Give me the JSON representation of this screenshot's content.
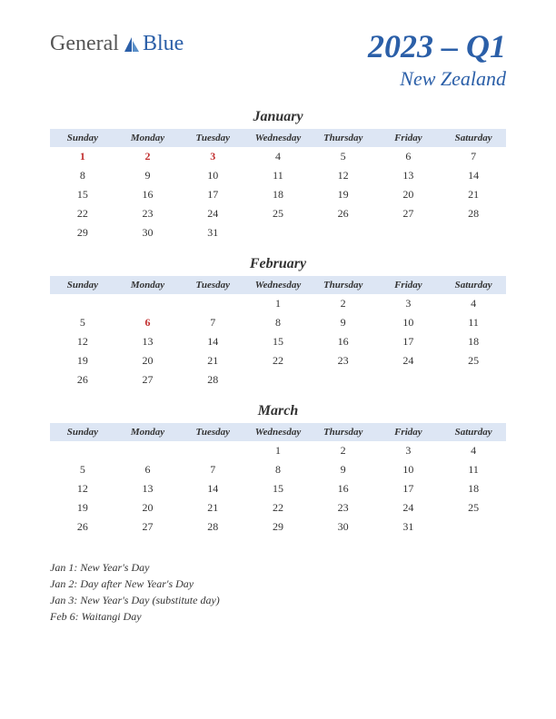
{
  "logo": {
    "part1": "General",
    "part2": "Blue"
  },
  "title": {
    "quarter": "2023 – Q1",
    "country": "New Zealand"
  },
  "day_headers": [
    "Sunday",
    "Monday",
    "Tuesday",
    "Wednesday",
    "Thursday",
    "Friday",
    "Saturday"
  ],
  "months": [
    {
      "name": "January",
      "weeks": [
        [
          {
            "d": "1",
            "h": true
          },
          {
            "d": "2",
            "h": true
          },
          {
            "d": "3",
            "h": true
          },
          {
            "d": "4"
          },
          {
            "d": "5"
          },
          {
            "d": "6"
          },
          {
            "d": "7"
          }
        ],
        [
          {
            "d": "8"
          },
          {
            "d": "9"
          },
          {
            "d": "10"
          },
          {
            "d": "11"
          },
          {
            "d": "12"
          },
          {
            "d": "13"
          },
          {
            "d": "14"
          }
        ],
        [
          {
            "d": "15"
          },
          {
            "d": "16"
          },
          {
            "d": "17"
          },
          {
            "d": "18"
          },
          {
            "d": "19"
          },
          {
            "d": "20"
          },
          {
            "d": "21"
          }
        ],
        [
          {
            "d": "22"
          },
          {
            "d": "23"
          },
          {
            "d": "24"
          },
          {
            "d": "25"
          },
          {
            "d": "26"
          },
          {
            "d": "27"
          },
          {
            "d": "28"
          }
        ],
        [
          {
            "d": "29"
          },
          {
            "d": "30"
          },
          {
            "d": "31"
          },
          {
            "d": ""
          },
          {
            "d": ""
          },
          {
            "d": ""
          },
          {
            "d": ""
          }
        ]
      ]
    },
    {
      "name": "February",
      "weeks": [
        [
          {
            "d": ""
          },
          {
            "d": ""
          },
          {
            "d": ""
          },
          {
            "d": "1"
          },
          {
            "d": "2"
          },
          {
            "d": "3"
          },
          {
            "d": "4"
          }
        ],
        [
          {
            "d": "5"
          },
          {
            "d": "6",
            "h": true
          },
          {
            "d": "7"
          },
          {
            "d": "8"
          },
          {
            "d": "9"
          },
          {
            "d": "10"
          },
          {
            "d": "11"
          }
        ],
        [
          {
            "d": "12"
          },
          {
            "d": "13"
          },
          {
            "d": "14"
          },
          {
            "d": "15"
          },
          {
            "d": "16"
          },
          {
            "d": "17"
          },
          {
            "d": "18"
          }
        ],
        [
          {
            "d": "19"
          },
          {
            "d": "20"
          },
          {
            "d": "21"
          },
          {
            "d": "22"
          },
          {
            "d": "23"
          },
          {
            "d": "24"
          },
          {
            "d": "25"
          }
        ],
        [
          {
            "d": "26"
          },
          {
            "d": "27"
          },
          {
            "d": "28"
          },
          {
            "d": ""
          },
          {
            "d": ""
          },
          {
            "d": ""
          },
          {
            "d": ""
          }
        ]
      ]
    },
    {
      "name": "March",
      "weeks": [
        [
          {
            "d": ""
          },
          {
            "d": ""
          },
          {
            "d": ""
          },
          {
            "d": "1"
          },
          {
            "d": "2"
          },
          {
            "d": "3"
          },
          {
            "d": "4"
          }
        ],
        [
          {
            "d": "5"
          },
          {
            "d": "6"
          },
          {
            "d": "7"
          },
          {
            "d": "8"
          },
          {
            "d": "9"
          },
          {
            "d": "10"
          },
          {
            "d": "11"
          }
        ],
        [
          {
            "d": "12"
          },
          {
            "d": "13"
          },
          {
            "d": "14"
          },
          {
            "d": "15"
          },
          {
            "d": "16"
          },
          {
            "d": "17"
          },
          {
            "d": "18"
          }
        ],
        [
          {
            "d": "19"
          },
          {
            "d": "20"
          },
          {
            "d": "21"
          },
          {
            "d": "22"
          },
          {
            "d": "23"
          },
          {
            "d": "24"
          },
          {
            "d": "25"
          }
        ],
        [
          {
            "d": "26"
          },
          {
            "d": "27"
          },
          {
            "d": "28"
          },
          {
            "d": "29"
          },
          {
            "d": "30"
          },
          {
            "d": "31"
          },
          {
            "d": ""
          }
        ]
      ]
    }
  ],
  "holidays": [
    "Jan 1: New Year's Day",
    "Jan 2: Day after New Year's Day",
    "Jan 3: New Year's Day (substitute day)",
    "Feb 6: Waitangi Day"
  ],
  "colors": {
    "header_bg": "#dde6f4",
    "accent": "#2b5fa8",
    "holiday": "#c23030",
    "text": "#333333",
    "bg": "#ffffff"
  }
}
